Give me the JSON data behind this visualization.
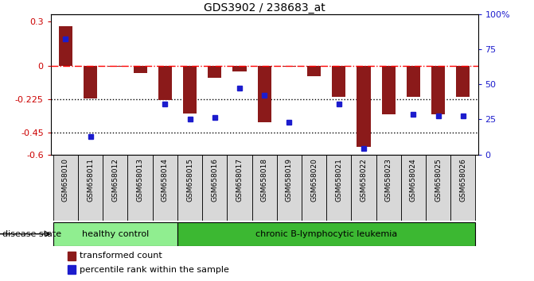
{
  "title": "GDS3902 / 238683_at",
  "samples": [
    "GSM658010",
    "GSM658011",
    "GSM658012",
    "GSM658013",
    "GSM658014",
    "GSM658015",
    "GSM658016",
    "GSM658017",
    "GSM658018",
    "GSM658019",
    "GSM658020",
    "GSM658021",
    "GSM658022",
    "GSM658023",
    "GSM658024",
    "GSM658025",
    "GSM658026"
  ],
  "bar_values": [
    0.27,
    -0.22,
    -0.005,
    -0.05,
    -0.23,
    -0.32,
    -0.08,
    -0.04,
    -0.38,
    -0.005,
    -0.07,
    -0.21,
    -0.55,
    -0.33,
    -0.21,
    -0.33,
    -0.21
  ],
  "dot_values": [
    0.18,
    -0.48,
    null,
    null,
    -0.26,
    -0.36,
    -0.35,
    -0.15,
    -0.2,
    -0.38,
    null,
    -0.26,
    -0.56,
    null,
    -0.33,
    -0.34,
    -0.34
  ],
  "bar_color": "#8B1A1A",
  "dot_color": "#1C1CCD",
  "ylim": [
    -0.6,
    0.35
  ],
  "yticks": [
    0.3,
    0.0,
    -0.225,
    -0.45,
    -0.6
  ],
  "ytick_labels": [
    "0.3",
    "0",
    "-0.225",
    "-0.45",
    "-0.6"
  ],
  "right_ytick_vals": [
    100,
    75,
    50,
    25,
    0
  ],
  "right_ytick_labels": [
    "100%",
    "75",
    "50",
    "25",
    "0"
  ],
  "hline_dotted1": -0.225,
  "hline_dotted2": -0.45,
  "num_healthy": 5,
  "healthy_label": "healthy control",
  "disease_label": "chronic B-lymphocytic leukemia",
  "disease_state_label": "disease state",
  "legend_bar": "transformed count",
  "legend_dot": "percentile rank within the sample",
  "group_bg_healthy": "#90EE90",
  "group_bg_disease": "#3CB832",
  "bar_width": 0.55,
  "right_axis_color": "#1C1CCD",
  "left_axis_color": "#CC0000",
  "ticklabel_bg": "#D8D8D8"
}
